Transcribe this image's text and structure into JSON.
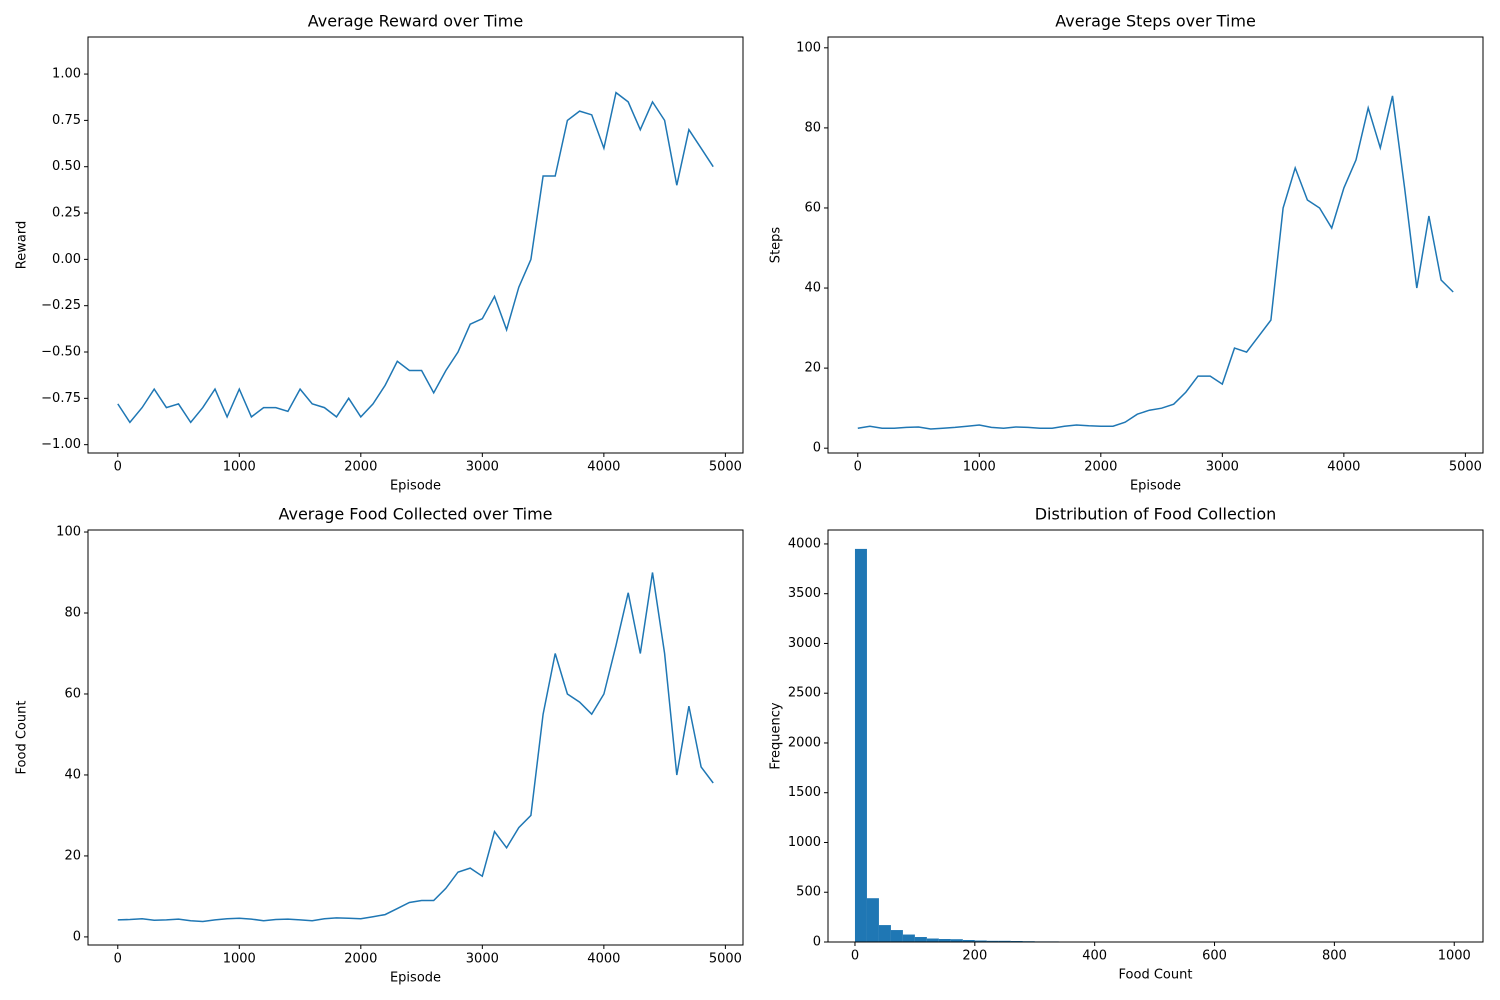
{
  "chart_data": [
    {
      "type": "line",
      "title": "Average Reward over Time",
      "x_label": "Episode",
      "y_label": "Reward",
      "color": "#1f77b4",
      "x": [
        0,
        100,
        200,
        300,
        400,
        500,
        600,
        700,
        800,
        900,
        1000,
        1100,
        1200,
        1300,
        1400,
        1500,
        1600,
        1700,
        1800,
        1900,
        2000,
        2100,
        2200,
        2300,
        2400,
        2500,
        2600,
        2700,
        2800,
        2900,
        3000,
        3100,
        3200,
        3300,
        3400,
        3500,
        3600,
        3700,
        3800,
        3900,
        4000,
        4100,
        4200,
        4300,
        4400,
        4500,
        4600,
        4700,
        4800,
        4900
      ],
      "values": [
        -0.78,
        -0.88,
        -0.8,
        -0.7,
        -0.8,
        -0.78,
        -0.88,
        -0.8,
        -0.7,
        -0.85,
        -0.7,
        -0.85,
        -0.8,
        -0.8,
        -0.82,
        -0.7,
        -0.78,
        -0.8,
        -0.85,
        -0.75,
        -0.85,
        -0.78,
        -0.68,
        -0.55,
        -0.6,
        -0.6,
        -0.72,
        -0.6,
        -0.5,
        -0.35,
        -0.32,
        -0.2,
        -0.38,
        -0.15,
        0.0,
        0.45,
        0.45,
        0.75,
        0.8,
        0.78,
        0.6,
        0.9,
        0.85,
        0.7,
        0.85,
        0.75,
        0.4,
        0.7,
        0.6,
        0.5
      ],
      "xlim": [
        -245,
        5145
      ],
      "ylim": [
        -1.045,
        1.2
      ],
      "xticks": [
        0,
        1000,
        2000,
        3000,
        4000,
        5000
      ],
      "yticks": [
        {
          "value": -1,
          "label": "−1.00"
        },
        {
          "value": -0.75,
          "label": "−0.75"
        },
        {
          "value": -0.5,
          "label": "−0.50"
        },
        {
          "value": -0.25,
          "label": "−0.25"
        },
        {
          "value": 0,
          "label": "0.00"
        },
        0.25,
        {
          "value": 0.5,
          "label": "0.50"
        },
        0.75,
        {
          "value": 1,
          "label": "1.00"
        }
      ]
    },
    {
      "type": "line",
      "title": "Average Steps over Time",
      "x_label": "Episode",
      "y_label": "Steps",
      "color": "#1f77b4",
      "x": [
        0,
        100,
        200,
        300,
        400,
        500,
        600,
        700,
        800,
        900,
        1000,
        1100,
        1200,
        1300,
        1400,
        1500,
        1600,
        1700,
        1800,
        1900,
        2000,
        2100,
        2200,
        2300,
        2400,
        2500,
        2600,
        2700,
        2800,
        2900,
        3000,
        3100,
        3200,
        3300,
        3400,
        3500,
        3600,
        3700,
        3800,
        3900,
        4000,
        4100,
        4200,
        4300,
        4400,
        4500,
        4600,
        4700,
        4800,
        4900
      ],
      "values": [
        5,
        5.5,
        5,
        5,
        5.2,
        5.3,
        4.8,
        5,
        5.2,
        5.5,
        5.8,
        5.2,
        5,
        5.3,
        5.2,
        5,
        5,
        5.5,
        5.8,
        5.6,
        5.5,
        5.5,
        6.5,
        8.5,
        9.5,
        10,
        11,
        14,
        18,
        18,
        16,
        25,
        24,
        28,
        32,
        60,
        70,
        62,
        60,
        55,
        65,
        72,
        85,
        75,
        88,
        65,
        40,
        58,
        42,
        39
      ],
      "xlim": [
        -245,
        5145
      ],
      "ylim": [
        -1.2,
        102.7
      ],
      "xticks": [
        0,
        1000,
        2000,
        3000,
        4000,
        5000
      ],
      "yticks": [
        0,
        20,
        40,
        60,
        80,
        100
      ]
    },
    {
      "type": "line",
      "title": "Average Food Collected over Time",
      "x_label": "Episode",
      "y_label": "Food Count",
      "color": "#1f77b4",
      "x": [
        0,
        100,
        200,
        300,
        400,
        500,
        600,
        700,
        800,
        900,
        1000,
        1100,
        1200,
        1300,
        1400,
        1500,
        1600,
        1700,
        1800,
        1900,
        2000,
        2100,
        2200,
        2300,
        2400,
        2500,
        2600,
        2700,
        2800,
        2900,
        3000,
        3100,
        3200,
        3300,
        3400,
        3500,
        3600,
        3700,
        3800,
        3900,
        4000,
        4100,
        4200,
        4300,
        4400,
        4500,
        4600,
        4700,
        4800,
        4900
      ],
      "values": [
        4.2,
        4.3,
        4.5,
        4.1,
        4.2,
        4.4,
        4,
        3.8,
        4.2,
        4.5,
        4.6,
        4.4,
        4,
        4.3,
        4.4,
        4.2,
        4,
        4.5,
        4.7,
        4.6,
        4.5,
        5,
        5.5,
        7,
        8.5,
        9,
        9,
        12,
        16,
        17,
        15,
        26,
        22,
        27,
        30,
        55,
        70,
        60,
        58,
        55,
        60,
        72,
        85,
        70,
        90,
        70,
        40,
        57,
        42,
        38
      ],
      "xlim": [
        -245,
        5145
      ],
      "ylim": [
        -2,
        100.5
      ],
      "xticks": [
        0,
        1000,
        2000,
        3000,
        4000,
        5000
      ],
      "yticks": [
        0,
        20,
        40,
        60,
        80,
        100
      ]
    },
    {
      "type": "histogram",
      "title": "Distribution of Food Collection",
      "x_label": "Food Count",
      "y_label": "Frequency",
      "color": "#1f77b4",
      "bins": [
        0,
        20,
        40,
        60,
        80,
        100,
        120,
        140,
        160,
        180,
        200,
        220,
        240,
        260,
        280,
        300,
        320,
        340,
        360,
        380,
        400,
        420,
        440,
        460,
        480,
        500,
        520,
        540,
        560,
        580,
        600,
        620,
        640,
        660,
        680,
        700,
        720,
        740,
        760,
        780,
        800,
        820,
        840,
        860,
        880,
        900,
        920,
        940,
        960,
        980,
        1000
      ],
      "values": [
        3950,
        440,
        170,
        120,
        75,
        50,
        35,
        30,
        28,
        20,
        15,
        12,
        12,
        10,
        8,
        6,
        6,
        5,
        5,
        5,
        4,
        4,
        3,
        3,
        2,
        2,
        1,
        1,
        1,
        0,
        0,
        0,
        0,
        0,
        0,
        0,
        0,
        0,
        0,
        0,
        0,
        0,
        0,
        0,
        0,
        0,
        0,
        0,
        0,
        5
      ],
      "xlim": [
        -45,
        1048
      ],
      "ylim": [
        0,
        4140
      ],
      "xticks": [
        0,
        200,
        400,
        600,
        800,
        1000
      ],
      "yticks": [
        0,
        500,
        1000,
        1500,
        2000,
        2500,
        3000,
        3500,
        4000
      ]
    }
  ]
}
